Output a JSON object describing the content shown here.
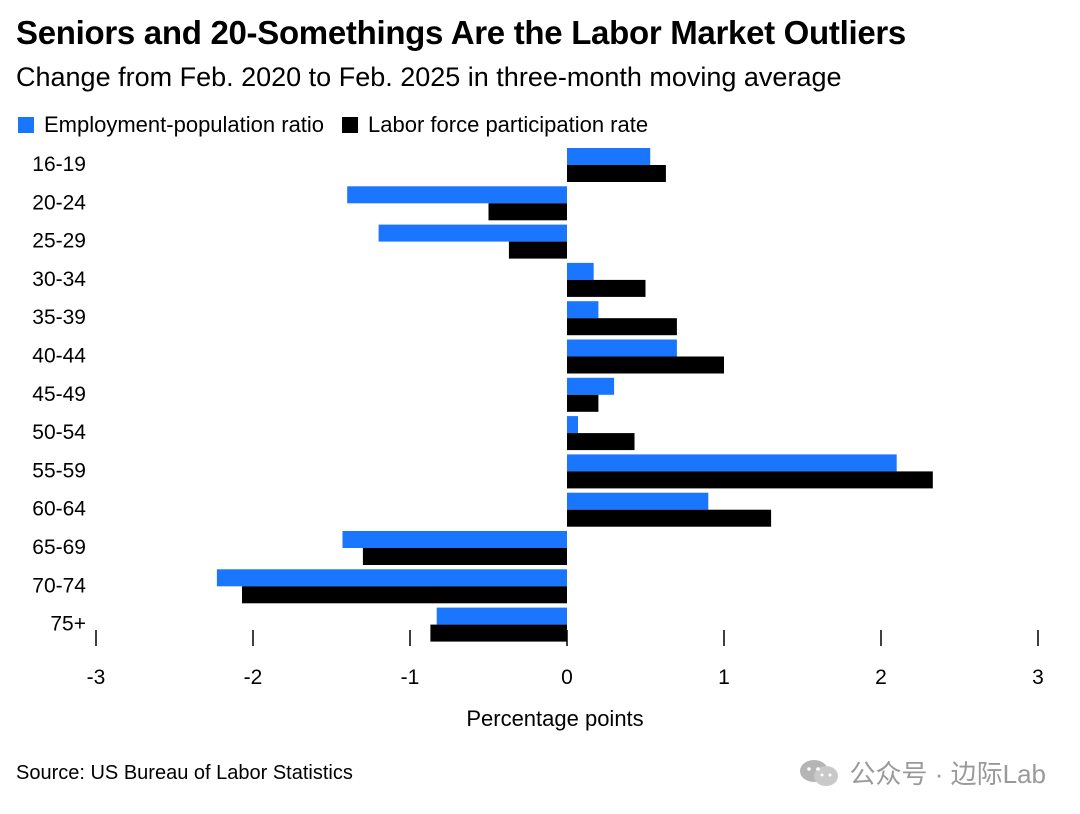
{
  "title": "Seniors and 20-Somethings Are the Labor Market Outliers",
  "subtitle": "Change from Feb. 2020 to Feb. 2025 in three-month moving average",
  "source": "Source: US Bureau of Labor Statistics",
  "watermark": "公众号 · 边际Lab",
  "legend": [
    {
      "label": "Employment-population ratio",
      "color": "#1a75ff"
    },
    {
      "label": "Labor force participation rate",
      "color": "#000000"
    }
  ],
  "chart_data": {
    "type": "bar",
    "orientation": "horizontal",
    "title": "Seniors and 20-Somethings Are the Labor Market Outliers",
    "subtitle": "Change from Feb. 2020 to Feb. 2025 in three-month moving average",
    "xlabel": "Percentage points",
    "ylabel": "",
    "xlim": [
      -3,
      3
    ],
    "xticks": [
      -3,
      -2,
      -1,
      0,
      1,
      2,
      3
    ],
    "grid": false,
    "legend_position": "top-left",
    "categories": [
      "16-19",
      "20-24",
      "25-29",
      "30-34",
      "35-39",
      "40-44",
      "45-49",
      "50-54",
      "55-59",
      "60-64",
      "65-69",
      "70-74",
      "75+"
    ],
    "series": [
      {
        "name": "Employment-population ratio",
        "color": "#1a75ff",
        "values": [
          0.53,
          -1.4,
          -1.2,
          0.17,
          0.2,
          0.7,
          0.3,
          0.07,
          2.1,
          0.9,
          -1.43,
          -2.23,
          -0.83
        ]
      },
      {
        "name": "Labor force participation rate",
        "color": "#000000",
        "values": [
          0.63,
          -0.5,
          -0.37,
          0.5,
          0.7,
          1.0,
          0.2,
          0.43,
          2.33,
          1.3,
          -1.3,
          -2.07,
          -0.87
        ]
      }
    ]
  }
}
